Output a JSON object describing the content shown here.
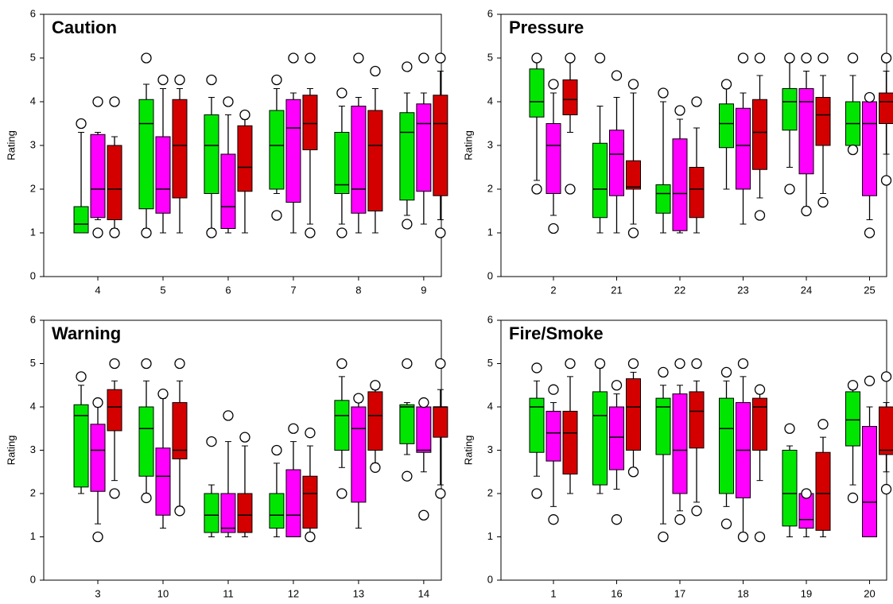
{
  "chart_data": [
    {
      "type": "box",
      "title": "Caution",
      "ylabel": "Rating",
      "categories": [
        "4",
        "5",
        "6",
        "7",
        "8",
        "9"
      ],
      "ylim": [
        0,
        6
      ],
      "yticks": [
        0,
        1,
        2,
        3,
        4,
        5,
        6
      ],
      "series": [
        {
          "color": "#00e600",
          "boxes": [
            {
              "low": 1,
              "q1": 1,
              "median": 1.2,
              "q3": 1.6,
              "high": 3.3,
              "outliers": [
                3.5
              ]
            },
            {
              "low": 1.1,
              "q1": 1.55,
              "median": 3.5,
              "q3": 4.05,
              "high": 4.4,
              "outliers": [
                1,
                5
              ]
            },
            {
              "low": 1.1,
              "q1": 1.9,
              "median": 3,
              "q3": 3.7,
              "high": 4.1,
              "outliers": [
                1,
                4.5
              ]
            },
            {
              "low": 1.9,
              "q1": 2,
              "median": 3,
              "q3": 3.8,
              "high": 4.3,
              "outliers": [
                1.4,
                4.5
              ]
            },
            {
              "low": 1.2,
              "q1": 1.9,
              "median": 2.1,
              "q3": 3.3,
              "high": 3.9,
              "outliers": [
                1,
                4.2
              ]
            },
            {
              "low": 1.4,
              "q1": 1.75,
              "median": 3.3,
              "q3": 3.75,
              "high": 4.2,
              "outliers": [
                1.2,
                4.8
              ]
            }
          ]
        },
        {
          "color": "#ff00ff",
          "boxes": [
            {
              "low": 1.3,
              "q1": 1.35,
              "median": 2,
              "q3": 3.25,
              "high": 3.3,
              "outliers": [
                1,
                4
              ]
            },
            {
              "low": 1,
              "q1": 1.45,
              "median": 2,
              "q3": 3.2,
              "high": 4.3,
              "outliers": [
                4.5
              ]
            },
            {
              "low": 1,
              "q1": 1.1,
              "median": 1.6,
              "q3": 2.8,
              "high": 3.7,
              "outliers": [
                4
              ]
            },
            {
              "low": 1,
              "q1": 1.7,
              "median": 3.4,
              "q3": 4.05,
              "high": 4.2,
              "outliers": [
                5
              ]
            },
            {
              "low": 1,
              "q1": 1.45,
              "median": 2,
              "q3": 3.9,
              "high": 4.1,
              "outliers": [
                5
              ]
            },
            {
              "low": 1.2,
              "q1": 1.95,
              "median": 3.5,
              "q3": 3.95,
              "high": 4.2,
              "outliers": [
                5
              ]
            }
          ]
        },
        {
          "color": "#d40000",
          "boxes": [
            {
              "low": 1.1,
              "q1": 1.3,
              "median": 2,
              "q3": 3,
              "high": 3.2,
              "outliers": [
                1,
                4
              ]
            },
            {
              "low": 1,
              "q1": 1.8,
              "median": 3,
              "q3": 4.05,
              "high": 4.3,
              "outliers": [
                4.5
              ]
            },
            {
              "low": 1,
              "q1": 1.95,
              "median": 2.5,
              "q3": 3.45,
              "high": 3.6,
              "outliers": [
                3.7
              ]
            },
            {
              "low": 1.2,
              "q1": 2.9,
              "median": 3.5,
              "q3": 4.15,
              "high": 4.3,
              "outliers": [
                1,
                5
              ]
            },
            {
              "low": 1,
              "q1": 1.5,
              "median": 3,
              "q3": 3.8,
              "high": 4.3,
              "outliers": [
                4.7
              ]
            },
            {
              "low": 1.3,
              "q1": 1.85,
              "median": 3.5,
              "q3": 4.15,
              "high": 4.7,
              "outliers": [
                1,
                5
              ]
            }
          ]
        }
      ]
    },
    {
      "type": "box",
      "title": "Pressure",
      "ylabel": "Rating",
      "categories": [
        "2",
        "21",
        "22",
        "23",
        "24",
        "25"
      ],
      "ylim": [
        0,
        6
      ],
      "yticks": [
        0,
        1,
        2,
        3,
        4,
        5,
        6
      ],
      "series": [
        {
          "color": "#00e600",
          "boxes": [
            {
              "low": 2.2,
              "q1": 3.65,
              "median": 4,
              "q3": 4.75,
              "high": 5,
              "outliers": [
                2,
                5
              ]
            },
            {
              "low": 1,
              "q1": 1.35,
              "median": 2,
              "q3": 3.05,
              "high": 3.9,
              "outliers": [
                5
              ]
            },
            {
              "low": 1,
              "q1": 1.45,
              "median": 1.9,
              "q3": 2.1,
              "high": 4,
              "outliers": [
                4.2
              ]
            },
            {
              "low": 2,
              "q1": 2.95,
              "median": 3.5,
              "q3": 3.95,
              "high": 4.3,
              "outliers": [
                4.4
              ]
            },
            {
              "low": 2.5,
              "q1": 3.35,
              "median": 4,
              "q3": 4.3,
              "high": 4.9,
              "outliers": [
                2,
                5
              ]
            },
            {
              "low": 3,
              "q1": 3,
              "median": 3.5,
              "q3": 4,
              "high": 4.6,
              "outliers": [
                2.9,
                5
              ]
            }
          ]
        },
        {
          "color": "#ff00ff",
          "boxes": [
            {
              "low": 1.4,
              "q1": 1.9,
              "median": 3,
              "q3": 3.5,
              "high": 4.2,
              "outliers": [
                1.1,
                4.4
              ]
            },
            {
              "low": 1,
              "q1": 1.85,
              "median": 2.8,
              "q3": 3.35,
              "high": 4.1,
              "outliers": [
                4.6
              ]
            },
            {
              "low": 1,
              "q1": 1.05,
              "median": 1.9,
              "q3": 3.15,
              "high": 3.6,
              "outliers": [
                3.8
              ]
            },
            {
              "low": 1.2,
              "q1": 2,
              "median": 3,
              "q3": 3.85,
              "high": 4.2,
              "outliers": [
                5
              ]
            },
            {
              "low": 1.6,
              "q1": 2.35,
              "median": 4,
              "q3": 4.3,
              "high": 4.7,
              "outliers": [
                1.5,
                5
              ]
            },
            {
              "low": 1.3,
              "q1": 1.85,
              "median": 3.5,
              "q3": 4,
              "high": 4.1,
              "outliers": [
                1,
                4.1
              ]
            }
          ]
        },
        {
          "color": "#d40000",
          "boxes": [
            {
              "low": 3.3,
              "q1": 3.7,
              "median": 4.05,
              "q3": 4.5,
              "high": 5,
              "outliers": [
                2,
                5
              ]
            },
            {
              "low": 1.2,
              "q1": 2,
              "median": 2.05,
              "q3": 2.65,
              "high": 4.2,
              "outliers": [
                1,
                4.4
              ]
            },
            {
              "low": 1,
              "q1": 1.35,
              "median": 2,
              "q3": 2.5,
              "high": 3.4,
              "outliers": [
                4
              ]
            },
            {
              "low": 1.8,
              "q1": 2.45,
              "median": 3.3,
              "q3": 4.05,
              "high": 4.6,
              "outliers": [
                1.4,
                5
              ]
            },
            {
              "low": 1.9,
              "q1": 3,
              "median": 3.7,
              "q3": 4.1,
              "high": 4.6,
              "outliers": [
                1.7,
                5
              ]
            },
            {
              "low": 2.8,
              "q1": 3.5,
              "median": 4,
              "q3": 4.2,
              "high": 4.7,
              "outliers": [
                2.2,
                5
              ]
            }
          ]
        }
      ]
    },
    {
      "type": "box",
      "title": "Warning",
      "ylabel": "Rating",
      "categories": [
        "3",
        "10",
        "11",
        "12",
        "13",
        "14"
      ],
      "ylim": [
        0,
        6
      ],
      "yticks": [
        0,
        1,
        2,
        3,
        4,
        5,
        6
      ],
      "series": [
        {
          "color": "#00e600",
          "boxes": [
            {
              "low": 2,
              "q1": 2.15,
              "median": 3.8,
              "q3": 4.05,
              "high": 4.5,
              "outliers": [
                4.7
              ]
            },
            {
              "low": 2,
              "q1": 2.4,
              "median": 3.5,
              "q3": 4,
              "high": 4.6,
              "outliers": [
                1.9,
                5
              ]
            },
            {
              "low": 1,
              "q1": 1.1,
              "median": 1.5,
              "q3": 2,
              "high": 2.2,
              "outliers": [
                3.2
              ]
            },
            {
              "low": 1,
              "q1": 1.2,
              "median": 1.5,
              "q3": 2,
              "high": 2.7,
              "outliers": [
                3
              ]
            },
            {
              "low": 2.6,
              "q1": 3,
              "median": 3.8,
              "q3": 4.15,
              "high": 4.7,
              "outliers": [
                2,
                5
              ]
            },
            {
              "low": 2.9,
              "q1": 3.15,
              "median": 4,
              "q3": 4.05,
              "high": 4.1,
              "outliers": [
                2.4,
                5
              ]
            }
          ]
        },
        {
          "color": "#ff00ff",
          "boxes": [
            {
              "low": 1.3,
              "q1": 2.05,
              "median": 3,
              "q3": 3.6,
              "high": 4,
              "outliers": [
                1,
                4.1
              ]
            },
            {
              "low": 1.2,
              "q1": 1.5,
              "median": 2.4,
              "q3": 3.05,
              "high": 4.2,
              "outliers": [
                4.3
              ]
            },
            {
              "low": 1,
              "q1": 1.1,
              "median": 1.2,
              "q3": 2,
              "high": 3.2,
              "outliers": [
                3.8
              ]
            },
            {
              "low": 1,
              "q1": 1,
              "median": 1.5,
              "q3": 2.55,
              "high": 3.2,
              "outliers": [
                3.5
              ]
            },
            {
              "low": 1.2,
              "q1": 1.8,
              "median": 3.5,
              "q3": 4,
              "high": 4.1,
              "outliers": [
                4.2
              ]
            },
            {
              "low": 2.5,
              "q1": 2.95,
              "median": 3,
              "q3": 4,
              "high": 4.05,
              "outliers": [
                1.5,
                4.1
              ]
            }
          ]
        },
        {
          "color": "#d40000",
          "boxes": [
            {
              "low": 2.3,
              "q1": 3.45,
              "median": 4,
              "q3": 4.4,
              "high": 4.6,
              "outliers": [
                2,
                5
              ]
            },
            {
              "low": 1.7,
              "q1": 2.8,
              "median": 3,
              "q3": 4.1,
              "high": 4.6,
              "outliers": [
                1.6,
                5
              ]
            },
            {
              "low": 1,
              "q1": 1.1,
              "median": 1.5,
              "q3": 2,
              "high": 3.1,
              "outliers": [
                3.3
              ]
            },
            {
              "low": 1.1,
              "q1": 1.2,
              "median": 2,
              "q3": 2.4,
              "high": 3.1,
              "outliers": [
                1,
                3.4
              ]
            },
            {
              "low": 2.7,
              "q1": 3,
              "median": 3.8,
              "q3": 4.35,
              "high": 4.4,
              "outliers": [
                2.6,
                4.5
              ]
            },
            {
              "low": 2.2,
              "q1": 3.3,
              "median": 4,
              "q3": 4,
              "high": 4.4,
              "outliers": [
                2,
                5
              ]
            }
          ]
        }
      ]
    },
    {
      "type": "box",
      "title": "Fire/Smoke",
      "ylabel": "Rating",
      "categories": [
        "1",
        "16",
        "17",
        "18",
        "19",
        "20"
      ],
      "ylim": [
        0,
        6
      ],
      "yticks": [
        0,
        1,
        2,
        3,
        4,
        5,
        6
      ],
      "series": [
        {
          "color": "#00e600",
          "boxes": [
            {
              "low": 2.4,
              "q1": 2.95,
              "median": 4,
              "q3": 4.2,
              "high": 4.6,
              "outliers": [
                2,
                4.9
              ]
            },
            {
              "low": 2,
              "q1": 2.2,
              "median": 3.8,
              "q3": 4.35,
              "high": 4.9,
              "outliers": [
                5
              ]
            },
            {
              "low": 1.3,
              "q1": 2.9,
              "median": 4,
              "q3": 4.2,
              "high": 4.5,
              "outliers": [
                1,
                4.8
              ]
            },
            {
              "low": 1.7,
              "q1": 2,
              "median": 3.5,
              "q3": 4.2,
              "high": 4.6,
              "outliers": [
                1.3,
                4.8
              ]
            },
            {
              "low": 1,
              "q1": 1.25,
              "median": 2,
              "q3": 3,
              "high": 3.1,
              "outliers": [
                3.5
              ]
            },
            {
              "low": 2.2,
              "q1": 3.1,
              "median": 3.7,
              "q3": 4.35,
              "high": 4.4,
              "outliers": [
                1.9,
                4.5
              ]
            }
          ]
        },
        {
          "color": "#ff00ff",
          "boxes": [
            {
              "low": 1.7,
              "q1": 2.75,
              "median": 3.4,
              "q3": 3.9,
              "high": 4.1,
              "outliers": [
                1.4,
                4.4
              ]
            },
            {
              "low": 2.1,
              "q1": 2.55,
              "median": 3.3,
              "q3": 4,
              "high": 4.3,
              "outliers": [
                1.4,
                4.5
              ]
            },
            {
              "low": 1.6,
              "q1": 2,
              "median": 3,
              "q3": 4.3,
              "high": 4.5,
              "outliers": [
                1.4,
                5
              ]
            },
            {
              "low": 1.1,
              "q1": 1.9,
              "median": 3,
              "q3": 4.1,
              "high": 4.7,
              "outliers": [
                1,
                5
              ]
            },
            {
              "low": 1,
              "q1": 1.2,
              "median": 1.4,
              "q3": 2,
              "high": 2,
              "outliers": [
                2
              ]
            },
            {
              "low": 1,
              "q1": 1,
              "median": 1.8,
              "q3": 3.55,
              "high": 4,
              "outliers": [
                4.6
              ]
            }
          ]
        },
        {
          "color": "#d40000",
          "boxes": [
            {
              "low": 2,
              "q1": 2.45,
              "median": 3.4,
              "q3": 3.9,
              "high": 4.7,
              "outliers": [
                5
              ]
            },
            {
              "low": 2.6,
              "q1": 3,
              "median": 4,
              "q3": 4.65,
              "high": 4.8,
              "outliers": [
                2.5,
                5
              ]
            },
            {
              "low": 1.8,
              "q1": 3.05,
              "median": 3.9,
              "q3": 4.35,
              "high": 4.6,
              "outliers": [
                1.6,
                5
              ]
            },
            {
              "low": 2.3,
              "q1": 3,
              "median": 4,
              "q3": 4.2,
              "high": 4.3,
              "outliers": [
                1,
                4.4
              ]
            },
            {
              "low": 1,
              "q1": 1.15,
              "median": 2,
              "q3": 2.95,
              "high": 3.3,
              "outliers": [
                3.6
              ]
            },
            {
              "low": 2.5,
              "q1": 2.9,
              "median": 3,
              "q3": 4,
              "high": 4.1,
              "outliers": [
                2.1,
                4.7
              ]
            }
          ]
        }
      ]
    }
  ]
}
